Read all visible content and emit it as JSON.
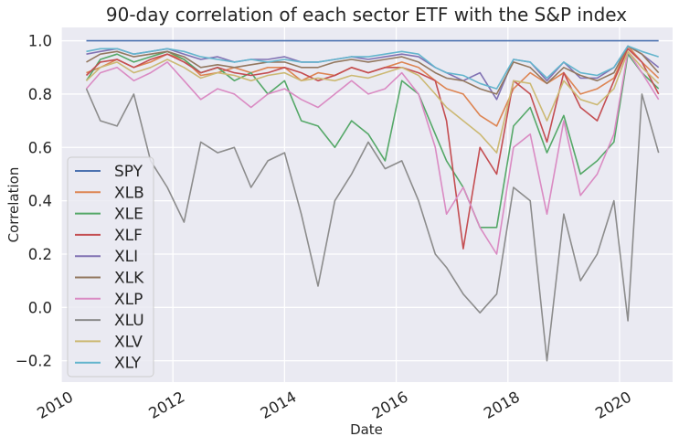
{
  "chart_data": {
    "type": "line",
    "title": "90-day correlation of each sector ETF with the S&P index",
    "xlabel": "Date",
    "ylabel": "Correlation",
    "xlim": [
      2010.0,
      2020.95
    ],
    "ylim": [
      -0.28,
      1.05
    ],
    "x_ticks": [
      2010,
      2012,
      2014,
      2016,
      2018,
      2020
    ],
    "x_tick_labels": [
      "2010",
      "2012",
      "2014",
      "2016",
      "2018",
      "2020"
    ],
    "y_ticks": [
      -0.2,
      0.0,
      0.2,
      0.4,
      0.6,
      0.8,
      1.0
    ],
    "y_tick_labels": [
      "−0.2",
      "0.0",
      "0.2",
      "0.4",
      "0.6",
      "0.8",
      "1.0"
    ],
    "grid": true,
    "legend_position": "lower-left",
    "colors": {
      "background": "#eaeaf2",
      "grid": "#ffffff"
    },
    "x": [
      2010.45,
      2010.7,
      2011.0,
      2011.3,
      2011.6,
      2011.9,
      2012.2,
      2012.5,
      2012.8,
      2013.1,
      2013.4,
      2013.7,
      2014.0,
      2014.3,
      2014.6,
      2014.9,
      2015.2,
      2015.5,
      2015.8,
      2016.1,
      2016.4,
      2016.7,
      2016.9,
      2017.2,
      2017.5,
      2017.8,
      2018.1,
      2018.4,
      2018.7,
      2019.0,
      2019.3,
      2019.6,
      2019.9,
      2020.15,
      2020.4,
      2020.7
    ],
    "series": [
      {
        "name": "SPY",
        "color": "#4c72b0",
        "values": [
          1.0,
          1.0,
          1.0,
          1.0,
          1.0,
          1.0,
          1.0,
          1.0,
          1.0,
          1.0,
          1.0,
          1.0,
          1.0,
          1.0,
          1.0,
          1.0,
          1.0,
          1.0,
          1.0,
          1.0,
          1.0,
          1.0,
          1.0,
          1.0,
          1.0,
          1.0,
          1.0,
          1.0,
          1.0,
          1.0,
          1.0,
          1.0,
          1.0,
          1.0,
          1.0,
          1.0
        ]
      },
      {
        "name": "XLB",
        "color": "#dd8452",
        "values": [
          0.88,
          0.9,
          0.93,
          0.9,
          0.92,
          0.95,
          0.93,
          0.87,
          0.88,
          0.9,
          0.88,
          0.9,
          0.9,
          0.85,
          0.88,
          0.87,
          0.9,
          0.88,
          0.9,
          0.92,
          0.9,
          0.85,
          0.82,
          0.8,
          0.72,
          0.68,
          0.82,
          0.88,
          0.84,
          0.88,
          0.8,
          0.82,
          0.86,
          0.98,
          0.92,
          0.86
        ]
      },
      {
        "name": "XLE",
        "color": "#55a868",
        "values": [
          0.85,
          0.93,
          0.95,
          0.92,
          0.94,
          0.96,
          0.93,
          0.88,
          0.9,
          0.85,
          0.88,
          0.8,
          0.85,
          0.7,
          0.68,
          0.6,
          0.7,
          0.65,
          0.55,
          0.85,
          0.8,
          0.65,
          0.55,
          0.45,
          0.3,
          0.3,
          0.68,
          0.75,
          0.58,
          0.72,
          0.5,
          0.55,
          0.62,
          0.95,
          0.88,
          0.82
        ]
      },
      {
        "name": "XLF",
        "color": "#c44e52",
        "values": [
          0.87,
          0.92,
          0.93,
          0.9,
          0.93,
          0.95,
          0.92,
          0.88,
          0.9,
          0.88,
          0.87,
          0.88,
          0.9,
          0.88,
          0.85,
          0.87,
          0.9,
          0.88,
          0.9,
          0.9,
          0.88,
          0.85,
          0.7,
          0.22,
          0.6,
          0.5,
          0.85,
          0.8,
          0.62,
          0.88,
          0.75,
          0.7,
          0.85,
          0.97,
          0.92,
          0.8
        ]
      },
      {
        "name": "XLI",
        "color": "#8172b3",
        "values": [
          0.95,
          0.96,
          0.97,
          0.95,
          0.96,
          0.97,
          0.95,
          0.93,
          0.94,
          0.92,
          0.93,
          0.93,
          0.94,
          0.92,
          0.92,
          0.93,
          0.94,
          0.93,
          0.94,
          0.95,
          0.94,
          0.9,
          0.88,
          0.85,
          0.88,
          0.78,
          0.93,
          0.92,
          0.85,
          0.92,
          0.86,
          0.86,
          0.9,
          0.98,
          0.95,
          0.9
        ]
      },
      {
        "name": "XLK",
        "color": "#937860",
        "values": [
          0.92,
          0.95,
          0.96,
          0.94,
          0.95,
          0.96,
          0.94,
          0.9,
          0.91,
          0.9,
          0.91,
          0.92,
          0.92,
          0.9,
          0.9,
          0.92,
          0.93,
          0.92,
          0.93,
          0.94,
          0.92,
          0.88,
          0.86,
          0.85,
          0.82,
          0.8,
          0.92,
          0.9,
          0.84,
          0.9,
          0.87,
          0.85,
          0.88,
          0.98,
          0.95,
          0.88
        ]
      },
      {
        "name": "XLP",
        "color": "#da8bc3",
        "values": [
          0.82,
          0.88,
          0.9,
          0.85,
          0.88,
          0.92,
          0.85,
          0.78,
          0.82,
          0.8,
          0.75,
          0.8,
          0.82,
          0.78,
          0.75,
          0.8,
          0.85,
          0.8,
          0.82,
          0.88,
          0.8,
          0.6,
          0.35,
          0.45,
          0.3,
          0.2,
          0.6,
          0.65,
          0.35,
          0.7,
          0.42,
          0.5,
          0.65,
          0.96,
          0.88,
          0.78
        ]
      },
      {
        "name": "XLU",
        "color": "#8c8c8c",
        "values": [
          0.82,
          0.7,
          0.68,
          0.8,
          0.55,
          0.45,
          0.32,
          0.62,
          0.58,
          0.6,
          0.45,
          0.55,
          0.58,
          0.35,
          0.08,
          0.4,
          0.5,
          0.62,
          0.52,
          0.55,
          0.4,
          0.2,
          0.15,
          0.05,
          -0.02,
          0.05,
          0.45,
          0.4,
          -0.2,
          0.35,
          0.1,
          0.2,
          0.4,
          -0.05,
          0.8,
          0.58
        ]
      },
      {
        "name": "XLV",
        "color": "#ccb974",
        "values": [
          0.85,
          0.9,
          0.92,
          0.88,
          0.9,
          0.93,
          0.9,
          0.86,
          0.88,
          0.87,
          0.85,
          0.87,
          0.88,
          0.85,
          0.86,
          0.85,
          0.87,
          0.86,
          0.88,
          0.9,
          0.87,
          0.8,
          0.75,
          0.7,
          0.65,
          0.58,
          0.85,
          0.84,
          0.7,
          0.85,
          0.78,
          0.76,
          0.82,
          0.96,
          0.9,
          0.84
        ]
      },
      {
        "name": "XLY",
        "color": "#64b5cd",
        "values": [
          0.96,
          0.97,
          0.97,
          0.95,
          0.96,
          0.97,
          0.96,
          0.94,
          0.93,
          0.92,
          0.93,
          0.92,
          0.93,
          0.92,
          0.92,
          0.93,
          0.94,
          0.94,
          0.95,
          0.96,
          0.95,
          0.9,
          0.88,
          0.87,
          0.84,
          0.82,
          0.93,
          0.92,
          0.86,
          0.92,
          0.88,
          0.87,
          0.9,
          0.98,
          0.96,
          0.94
        ]
      }
    ]
  }
}
